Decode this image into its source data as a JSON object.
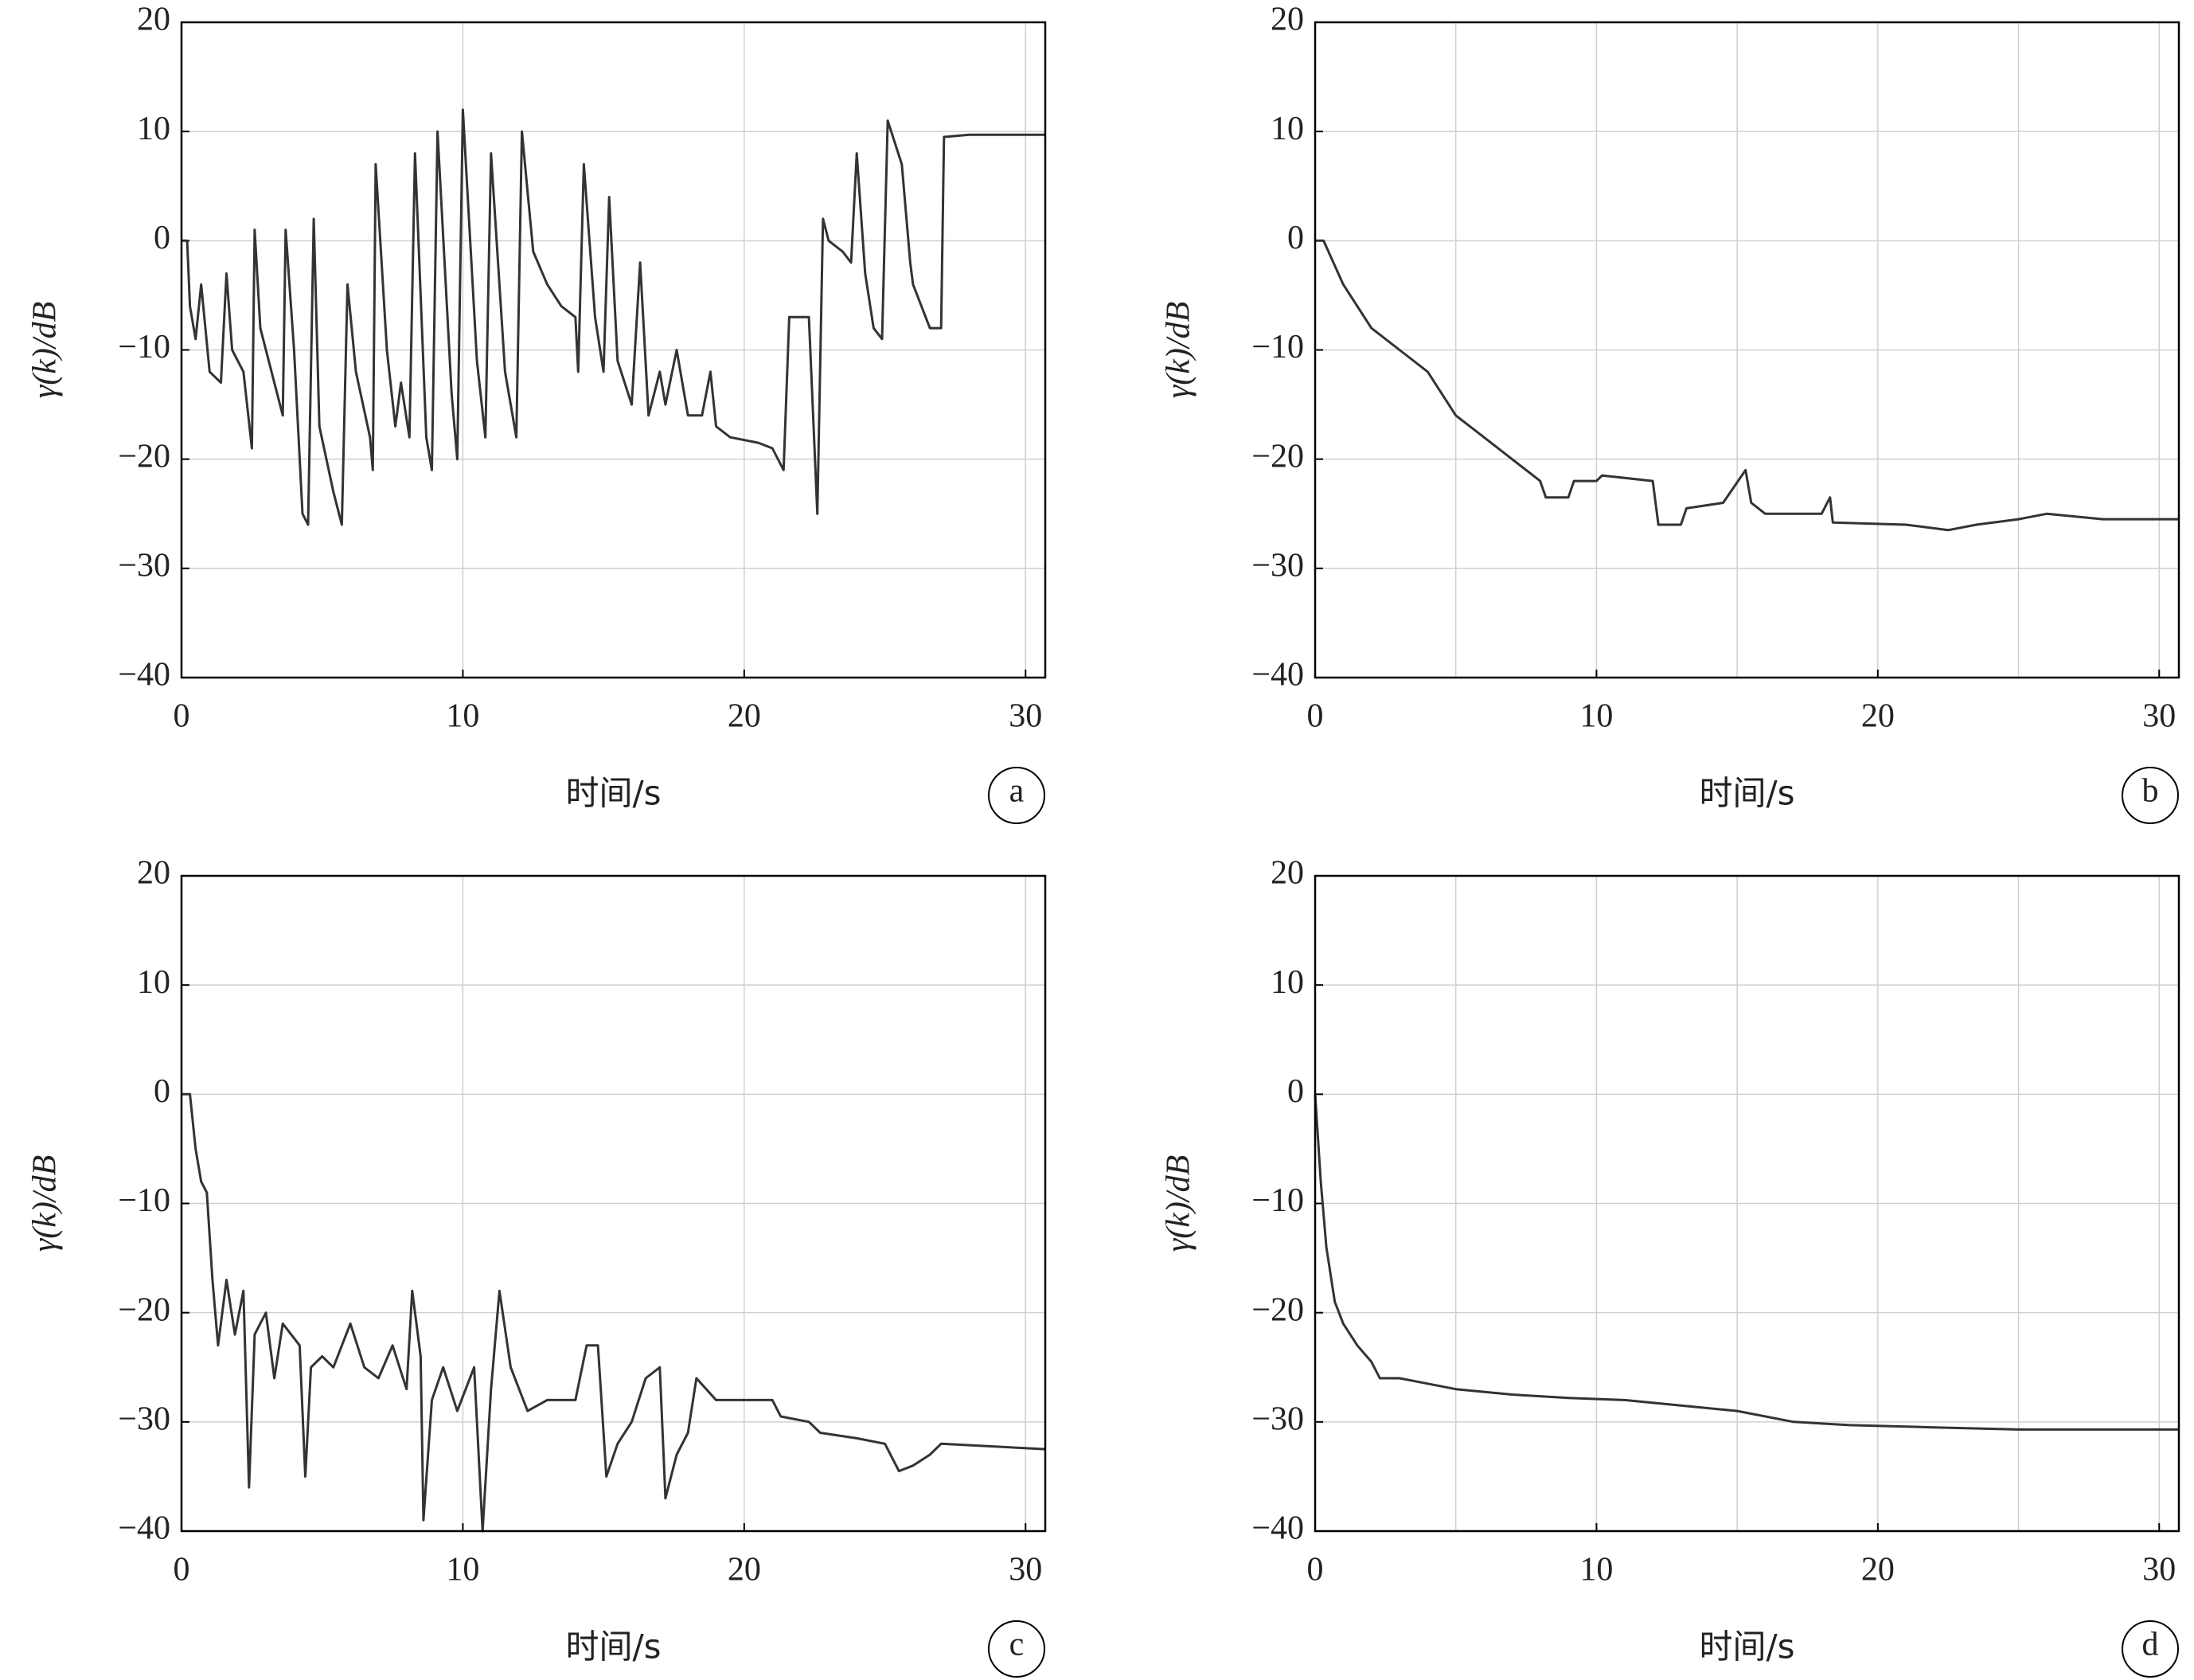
{
  "chart_data": [
    {
      "type": "line",
      "label": "a",
      "xlabel": "时间/s",
      "ylabel": "γ(k)/dB",
      "color": "#333333",
      "grid": true,
      "xlim": [
        0,
        30.7
      ],
      "ylim": [
        -40,
        20
      ],
      "xticks": [
        0,
        10,
        20,
        30
      ],
      "yticks": [
        {
          "value": -40,
          "label": "−40"
        },
        {
          "value": -30,
          "label": "−30"
        },
        {
          "value": -20,
          "label": "−20"
        },
        {
          "value": -10,
          "label": "−10"
        },
        0,
        10,
        20
      ],
      "series": [
        {
          "name": null,
          "color": "#333333",
          "x": [
            0,
            0.2,
            0.3,
            0.5,
            0.7,
            1,
            1.4,
            1.6,
            1.8,
            2.2,
            2.5,
            2.6,
            2.8,
            3.3,
            3.6,
            3.7,
            4,
            4.3,
            4.5,
            4.7,
            4.9,
            5.4,
            5.7,
            5.9,
            6.2,
            6.7,
            6.8,
            6.9,
            7.3,
            7.6,
            7.8,
            8.1,
            8.3,
            8.7,
            8.9,
            9.1,
            9.6,
            9.8,
            10,
            10.5,
            10.8,
            11,
            11.5,
            11.9,
            12.1,
            12.5,
            13,
            13.5,
            14,
            14.1,
            14.3,
            14.7,
            15,
            15.2,
            15.5,
            16,
            16.3,
            16.6,
            17,
            17.2,
            17.6,
            18,
            18.5,
            18.8,
            19,
            19.5,
            20.5,
            21,
            21.4,
            21.6,
            22,
            22.3,
            22.6,
            22.8,
            23,
            23.5,
            23.8,
            24,
            24.3,
            24.6,
            24.9,
            25.1,
            25.6,
            25.9,
            26,
            26.3,
            26.6,
            27,
            27.1,
            28,
            30.7
          ],
          "values": [
            0,
            0,
            -6,
            -9,
            -4,
            -12,
            -13,
            -3,
            -10,
            -12,
            -19,
            1,
            -8,
            -13,
            -16,
            1,
            -10,
            -25,
            -26,
            2,
            -17,
            -23,
            -26,
            -4,
            -12,
            -18,
            -21,
            7,
            -10,
            -17,
            -13,
            -18,
            8,
            -18,
            -21,
            10,
            -14,
            -20,
            12,
            -11,
            -18,
            8,
            -12,
            -18,
            10,
            -1,
            -4,
            -6,
            -7,
            -12,
            7,
            -7,
            -12,
            4,
            -11,
            -15,
            -2,
            -16,
            -12,
            -15,
            -10,
            -16,
            -16,
            -12,
            -17,
            -18,
            -18.5,
            -19,
            -21,
            -7,
            -7,
            -7,
            -25,
            2,
            0,
            -1,
            -2,
            8,
            -3,
            -8,
            -9,
            11,
            7,
            -2,
            -4,
            -6,
            -8,
            -8,
            9.5,
            9.7,
            9.7
          ]
        }
      ]
    },
    {
      "type": "line",
      "label": "b",
      "xlabel": "时间/s",
      "ylabel": "γ(k)/dB",
      "color": "#333333",
      "grid": true,
      "xlim": [
        0,
        30.7
      ],
      "ylim": [
        -40,
        20
      ],
      "xticks": [
        0,
        10,
        20,
        30
      ],
      "xminor": [
        5,
        15,
        25
      ],
      "yticks": [
        {
          "value": -40,
          "label": "−40"
        },
        {
          "value": -30,
          "label": "−30"
        },
        {
          "value": -20,
          "label": "−20"
        },
        {
          "value": -10,
          "label": "−10"
        },
        0,
        10,
        20
      ],
      "series": [
        {
          "name": null,
          "color": "#333333",
          "x": [
            0,
            0.3,
            1,
            2,
            3,
            4,
            5,
            6,
            7,
            8,
            8.2,
            9,
            9.2,
            10,
            10.2,
            12,
            12.2,
            13,
            13.2,
            14.5,
            15.3,
            15.5,
            16,
            17,
            18,
            18.3,
            18.4,
            21,
            22.5,
            23.5,
            25,
            26,
            28,
            30.7
          ],
          "values": [
            0,
            0,
            -4,
            -8,
            -10,
            -12,
            -16,
            -18,
            -20,
            -22,
            -23.5,
            -23.5,
            -22,
            -22,
            -21.5,
            -22,
            -26,
            -26,
            -24.5,
            -24,
            -21,
            -24,
            -25,
            -25,
            -25,
            -23.5,
            -25.8,
            -26,
            -26.5,
            -26,
            -25.5,
            -25,
            -25.5,
            -25.5
          ]
        }
      ]
    },
    {
      "type": "line",
      "label": "c",
      "xlabel": "时间/s",
      "ylabel": "γ(k)/dB",
      "color": "#333333",
      "grid": true,
      "xlim": [
        0,
        30.7
      ],
      "ylim": [
        -40,
        20
      ],
      "xticks": [
        0,
        10,
        20,
        30
      ],
      "yticks": [
        {
          "value": -40,
          "label": "−40"
        },
        {
          "value": -30,
          "label": "−30"
        },
        {
          "value": -20,
          "label": "−20"
        },
        {
          "value": -10,
          "label": "−10"
        },
        0,
        10,
        20
      ],
      "series": [
        {
          "name": null,
          "color": "#333333",
          "x": [
            0,
            0.3,
            0.5,
            0.7,
            0.9,
            1.1,
            1.3,
            1.6,
            1.9,
            2.2,
            2.4,
            2.6,
            3,
            3.3,
            3.6,
            4.2,
            4.4,
            4.6,
            5,
            5.4,
            6,
            6.5,
            7,
            7.5,
            8,
            8.2,
            8.5,
            8.6,
            8.9,
            9.3,
            9.8,
            10.4,
            10.7,
            11,
            11.3,
            11.7,
            12.3,
            13,
            14,
            14.4,
            14.8,
            15.1,
            15.5,
            16,
            16.5,
            17,
            17.2,
            17.6,
            18,
            18.3,
            19,
            21,
            21.3,
            22.3,
            22.7,
            24,
            25,
            25.5,
            26,
            26.6,
            27,
            30.7
          ],
          "values": [
            0,
            0,
            -5,
            -8,
            -9,
            -17,
            -23,
            -17,
            -22,
            -18,
            -36,
            -22,
            -20,
            -26,
            -21,
            -23,
            -35,
            -25,
            -24,
            -25,
            -21,
            -25,
            -26,
            -23,
            -27,
            -18,
            -24,
            -39,
            -28,
            -25,
            -29,
            -25,
            -40,
            -27,
            -18,
            -25,
            -29,
            -28,
            -28,
            -23,
            -23,
            -35,
            -32,
            -30,
            -26,
            -25,
            -37,
            -33,
            -31,
            -26,
            -28,
            -28,
            -29.5,
            -30,
            -31,
            -31.5,
            -32,
            -34.5,
            -34,
            -33,
            -32,
            -32.5
          ]
        }
      ]
    },
    {
      "type": "line",
      "label": "d",
      "xlabel": "时间/s",
      "ylabel": "γ(k)/dB",
      "color": "#333333",
      "grid": true,
      "xlim": [
        0,
        30.7
      ],
      "ylim": [
        -40,
        20
      ],
      "xticks": [
        0,
        10,
        20,
        30
      ],
      "xminor": [
        5,
        15,
        25
      ],
      "yticks": [
        {
          "value": -40,
          "label": "−40"
        },
        {
          "value": -30,
          "label": "−30"
        },
        {
          "value": -20,
          "label": "−20"
        },
        {
          "value": -10,
          "label": "−10"
        },
        0,
        10,
        20
      ],
      "series": [
        {
          "name": null,
          "color": "#333333",
          "x": [
            0,
            0.2,
            0.4,
            0.7,
            1,
            1.5,
            2,
            2.3,
            3,
            4,
            5,
            7,
            9,
            11,
            13,
            15,
            17,
            19,
            22,
            25,
            30.7
          ],
          "values": [
            0,
            -8,
            -14,
            -19,
            -21,
            -23,
            -24.5,
            -26,
            -26,
            -26.5,
            -27,
            -27.5,
            -27.8,
            -28,
            -28.5,
            -29,
            -30,
            -30.3,
            -30.5,
            -30.7,
            -30.7
          ]
        }
      ]
    }
  ]
}
